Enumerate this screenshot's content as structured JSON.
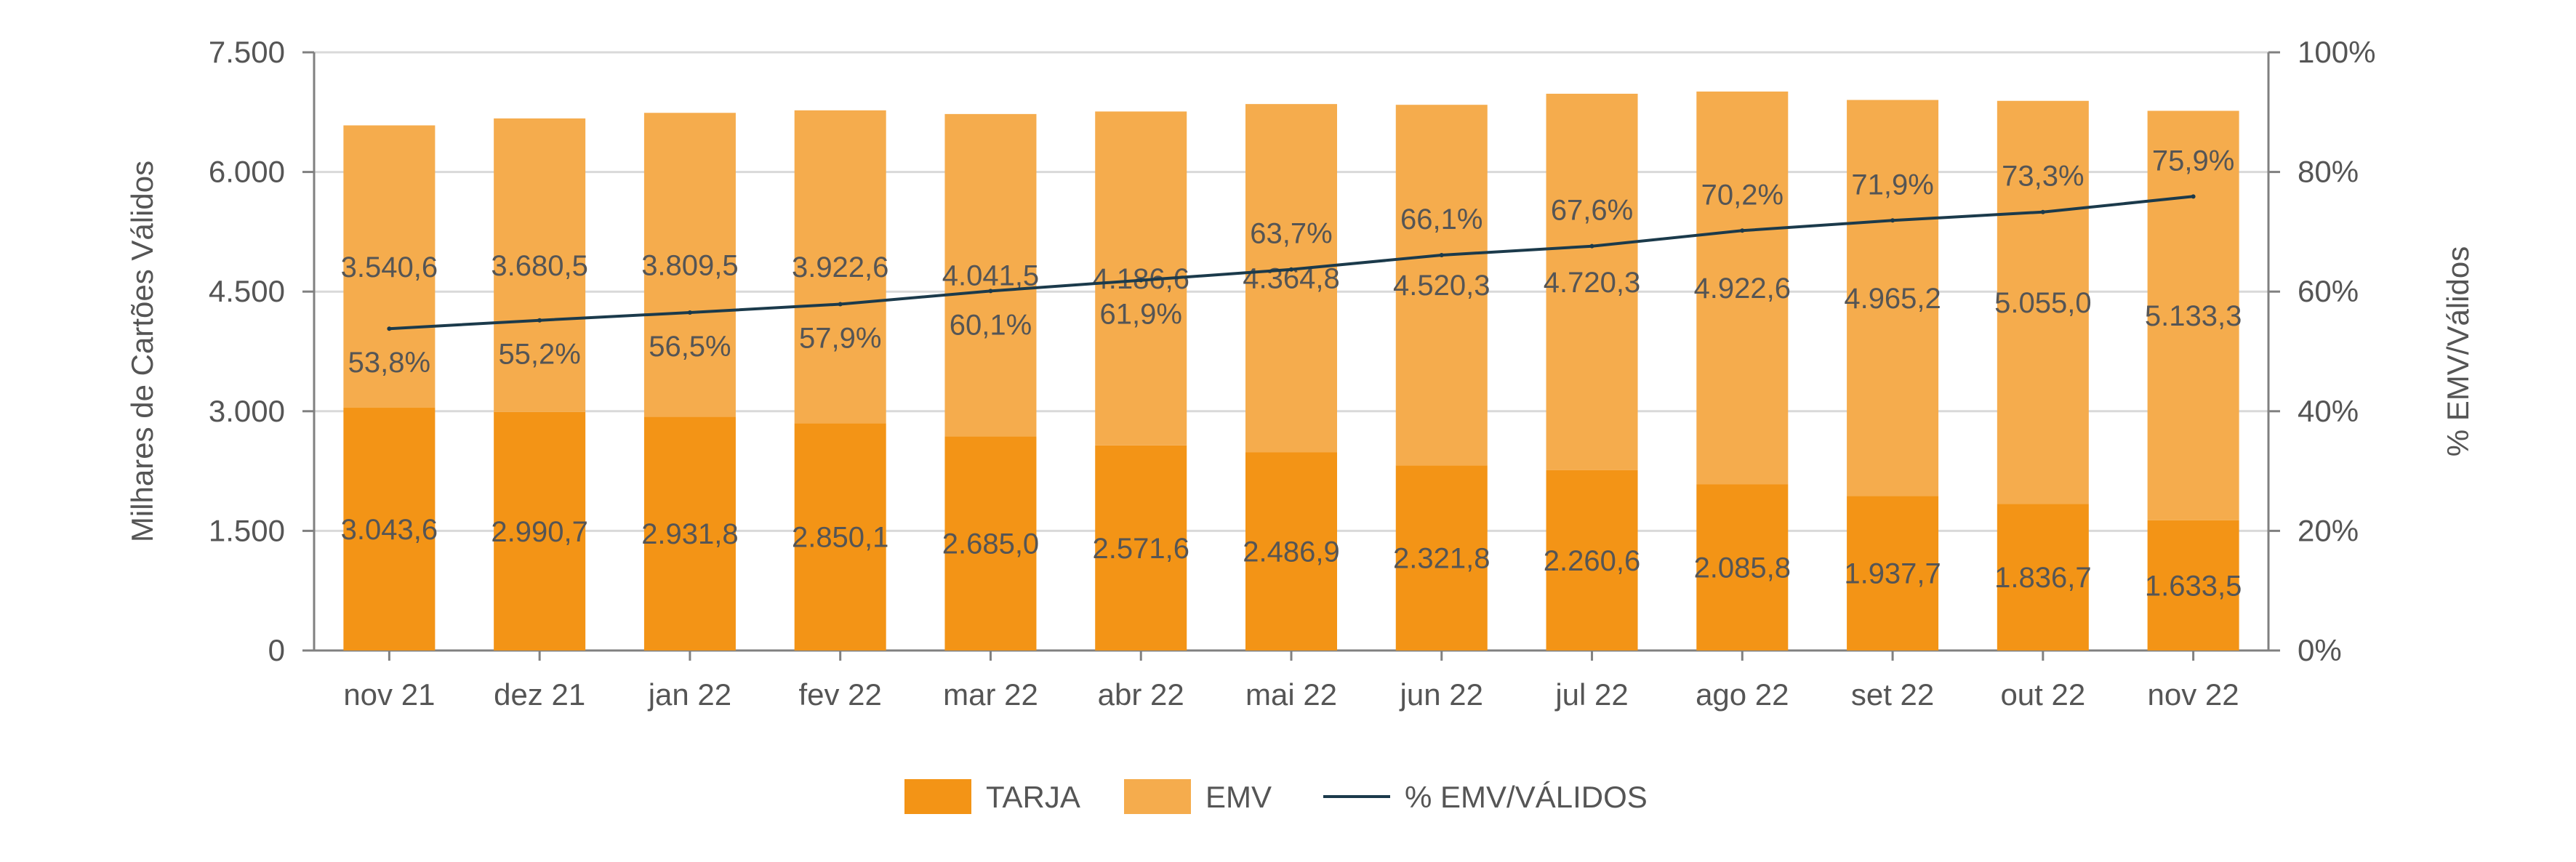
{
  "chart_data": {
    "type": "bar",
    "stacked": true,
    "categories": [
      "nov 21",
      "dez 21",
      "jan 22",
      "fev 22",
      "mar 22",
      "abr 22",
      "mai 22",
      "jun 22",
      "jul 22",
      "ago 22",
      "set 22",
      "out 22",
      "nov 22"
    ],
    "series": [
      {
        "name": "TARJA",
        "kind": "bar",
        "axis": "left",
        "color": "#F39416",
        "values": [
          3043.6,
          2990.7,
          2931.8,
          2850.1,
          2685.0,
          2571.6,
          2486.9,
          2321.8,
          2260.6,
          2085.8,
          1937.7,
          1836.7,
          1633.5
        ],
        "labels": [
          "3.043,6",
          "2.990,7",
          "2.931,8",
          "2.850,1",
          "2.685,0",
          "2.571,6",
          "2.486,9",
          "2.321,8",
          "2.260,6",
          "2.085,8",
          "1.937,7",
          "1.836,7",
          "1.633,5"
        ]
      },
      {
        "name": "EMV",
        "kind": "bar",
        "axis": "left",
        "color": "#F5AC4D",
        "values": [
          3540.6,
          3680.5,
          3809.5,
          3922.6,
          4041.5,
          4186.6,
          4364.8,
          4520.3,
          4720.3,
          4922.6,
          4965.2,
          5055.0,
          5133.3
        ],
        "labels": [
          "3.540,6",
          "3.680,5",
          "3.809,5",
          "3.922,6",
          "4.041,5",
          "4.186,6",
          "4.364,8",
          "4.520,3",
          "4.720,3",
          "4.922,6",
          "4.965,2",
          "5.055,0",
          "5.133,3"
        ]
      },
      {
        "name": "% EMV/VÁLIDOS",
        "kind": "line",
        "axis": "right",
        "color": "#1B3A4B",
        "values": [
          53.8,
          55.2,
          56.5,
          57.9,
          60.1,
          61.9,
          63.7,
          66.1,
          67.6,
          70.2,
          71.9,
          73.3,
          75.9
        ],
        "labels": [
          "53,8%",
          "55,2%",
          "56,5%",
          "57,9%",
          "60,1%",
          "61,9%",
          "63,7%",
          "66,1%",
          "67,6%",
          "70,2%",
          "71,9%",
          "73,3%",
          "75,9%"
        ]
      }
    ],
    "ylabel": "Milhares de Cartões Válidos",
    "y2label": "% EMV/Válidos",
    "ylim": [
      0,
      7500
    ],
    "y2lim": [
      0,
      100
    ],
    "yticks": [
      "0",
      "1.500",
      "3.000",
      "4.500",
      "6.000",
      "7.500"
    ],
    "y2ticks": [
      "0%",
      "20%",
      "40%",
      "60%",
      "80%",
      "100%"
    ],
    "grid": true,
    "legend_position": "bottom-center"
  }
}
